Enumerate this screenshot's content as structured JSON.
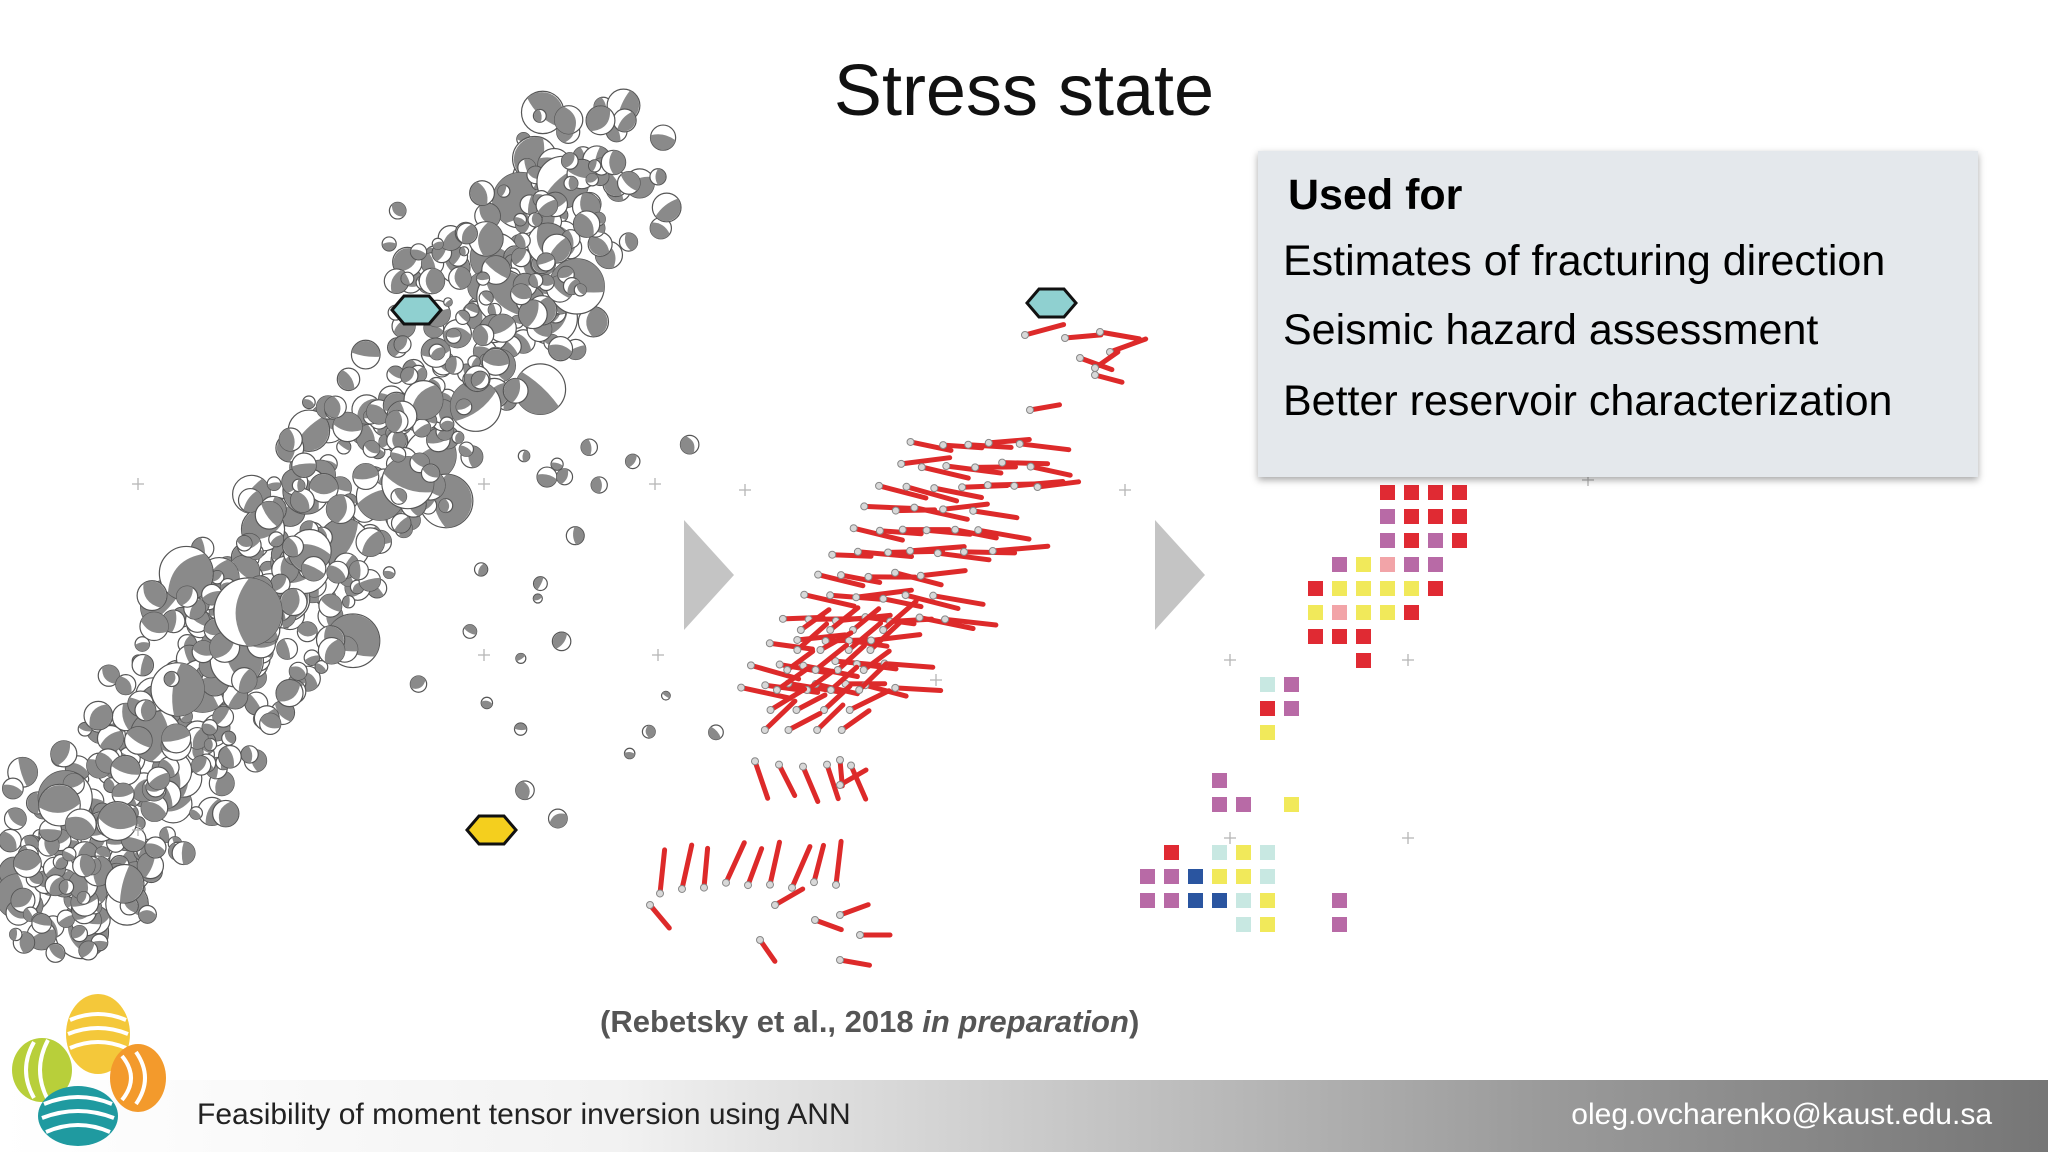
{
  "slide": {
    "title": "Stress state",
    "info_box": {
      "heading": "Used for",
      "items": [
        "Estimates of fracturing direction",
        "Seismic hazard assessment",
        "Better reservoir characterization"
      ]
    },
    "citation": {
      "prefix": "(Rebetsky et al., 2018 ",
      "italic": "in preparation",
      "suffix": ")"
    },
    "footer": {
      "title": "Feasibility of moment tensor inversion using ANN",
      "email": "oleg.ovcharenko@kaust.edu.sa"
    }
  },
  "colors": {
    "title_text": "#111111",
    "beachball_gray": "#8a8a8a",
    "stress_red": "#dd2a2a",
    "marker_teal": "#8fd0d0",
    "marker_yellow": "#f4cf1e",
    "arrow_gray": "#c4c4c4",
    "cell_red": "#e02a33",
    "cell_magenta": "#b86aa6",
    "cell_pink": "#f2a4a8",
    "cell_yellow": "#f1e95a",
    "cell_lightteal": "#c8e8e2",
    "cell_blue": "#2a55a0",
    "info_box_bg": "#e4e8ec"
  },
  "icons": {
    "arrow1": "chevron-right-icon",
    "arrow2": "chevron-right-icon",
    "logo": "kaust-logo"
  }
}
